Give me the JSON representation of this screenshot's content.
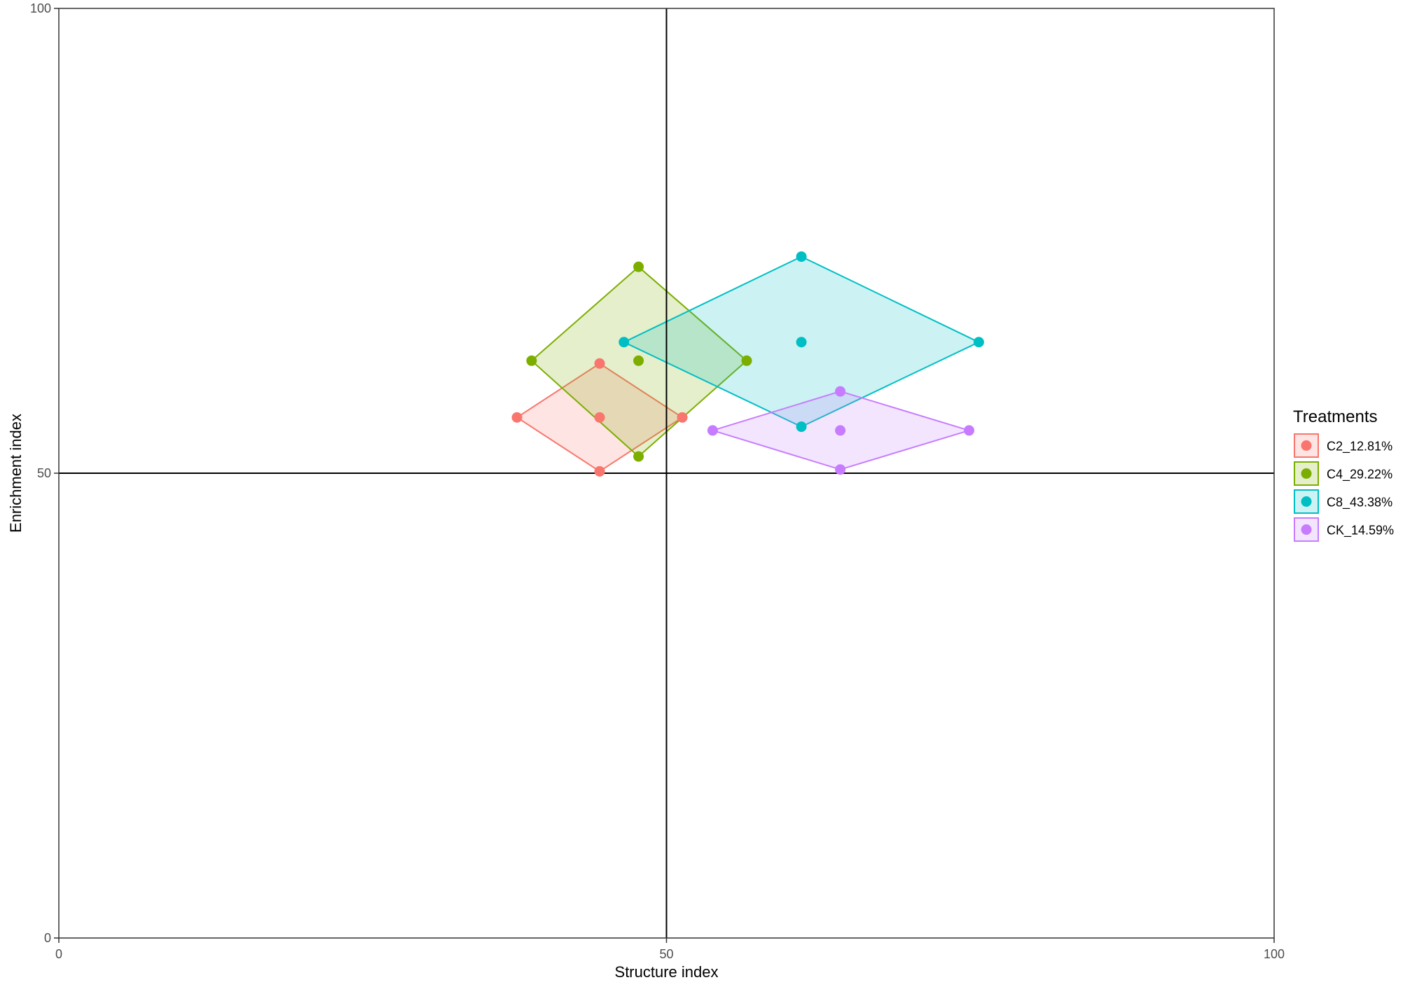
{
  "chart_data": {
    "type": "scatter",
    "title": "",
    "xlabel": "Structure index",
    "ylabel": "Enrichment index",
    "xlim": [
      0,
      100
    ],
    "ylim": [
      0,
      100
    ],
    "x_ticks": [
      "0",
      "50",
      "100"
    ],
    "y_ticks": [
      "0",
      "50",
      "100"
    ],
    "reference_lines": {
      "x": 50,
      "y": 50
    },
    "grid": false,
    "legend": {
      "title": "Treatments",
      "position": "right"
    },
    "series": [
      {
        "name": "C2_12.81%",
        "color": "#F8766D",
        "points": [
          [
            37.7,
            56.0
          ],
          [
            44.5,
            61.8
          ],
          [
            44.5,
            56.0
          ],
          [
            44.5,
            50.2
          ],
          [
            51.3,
            56.0
          ]
        ],
        "hull": [
          [
            37.7,
            56.0
          ],
          [
            44.5,
            61.8
          ],
          [
            51.3,
            56.0
          ],
          [
            44.5,
            50.2
          ]
        ]
      },
      {
        "name": "C4_29.22%",
        "color": "#7CAE00",
        "points": [
          [
            38.9,
            62.1
          ],
          [
            47.7,
            72.2
          ],
          [
            47.7,
            62.1
          ],
          [
            47.7,
            51.8
          ],
          [
            56.6,
            62.1
          ]
        ],
        "hull": [
          [
            38.9,
            62.1
          ],
          [
            47.7,
            72.2
          ],
          [
            56.6,
            62.1
          ],
          [
            47.7,
            51.8
          ]
        ]
      },
      {
        "name": "C8_43.38%",
        "color": "#00BFC4",
        "points": [
          [
            46.5,
            64.1
          ],
          [
            61.1,
            73.3
          ],
          [
            61.1,
            64.1
          ],
          [
            61.1,
            55.0
          ],
          [
            75.7,
            64.1
          ]
        ],
        "hull": [
          [
            46.5,
            64.1
          ],
          [
            61.1,
            73.3
          ],
          [
            75.7,
            64.1
          ],
          [
            61.1,
            55.0
          ]
        ]
      },
      {
        "name": "CK_14.59%",
        "color": "#C77CFF",
        "points": [
          [
            53.8,
            54.6
          ],
          [
            64.3,
            58.8
          ],
          [
            64.3,
            54.6
          ],
          [
            64.3,
            50.4
          ],
          [
            74.9,
            54.6
          ]
        ],
        "hull": [
          [
            53.8,
            54.6
          ],
          [
            64.3,
            58.8
          ],
          [
            74.9,
            54.6
          ],
          [
            64.3,
            50.4
          ]
        ]
      }
    ]
  }
}
